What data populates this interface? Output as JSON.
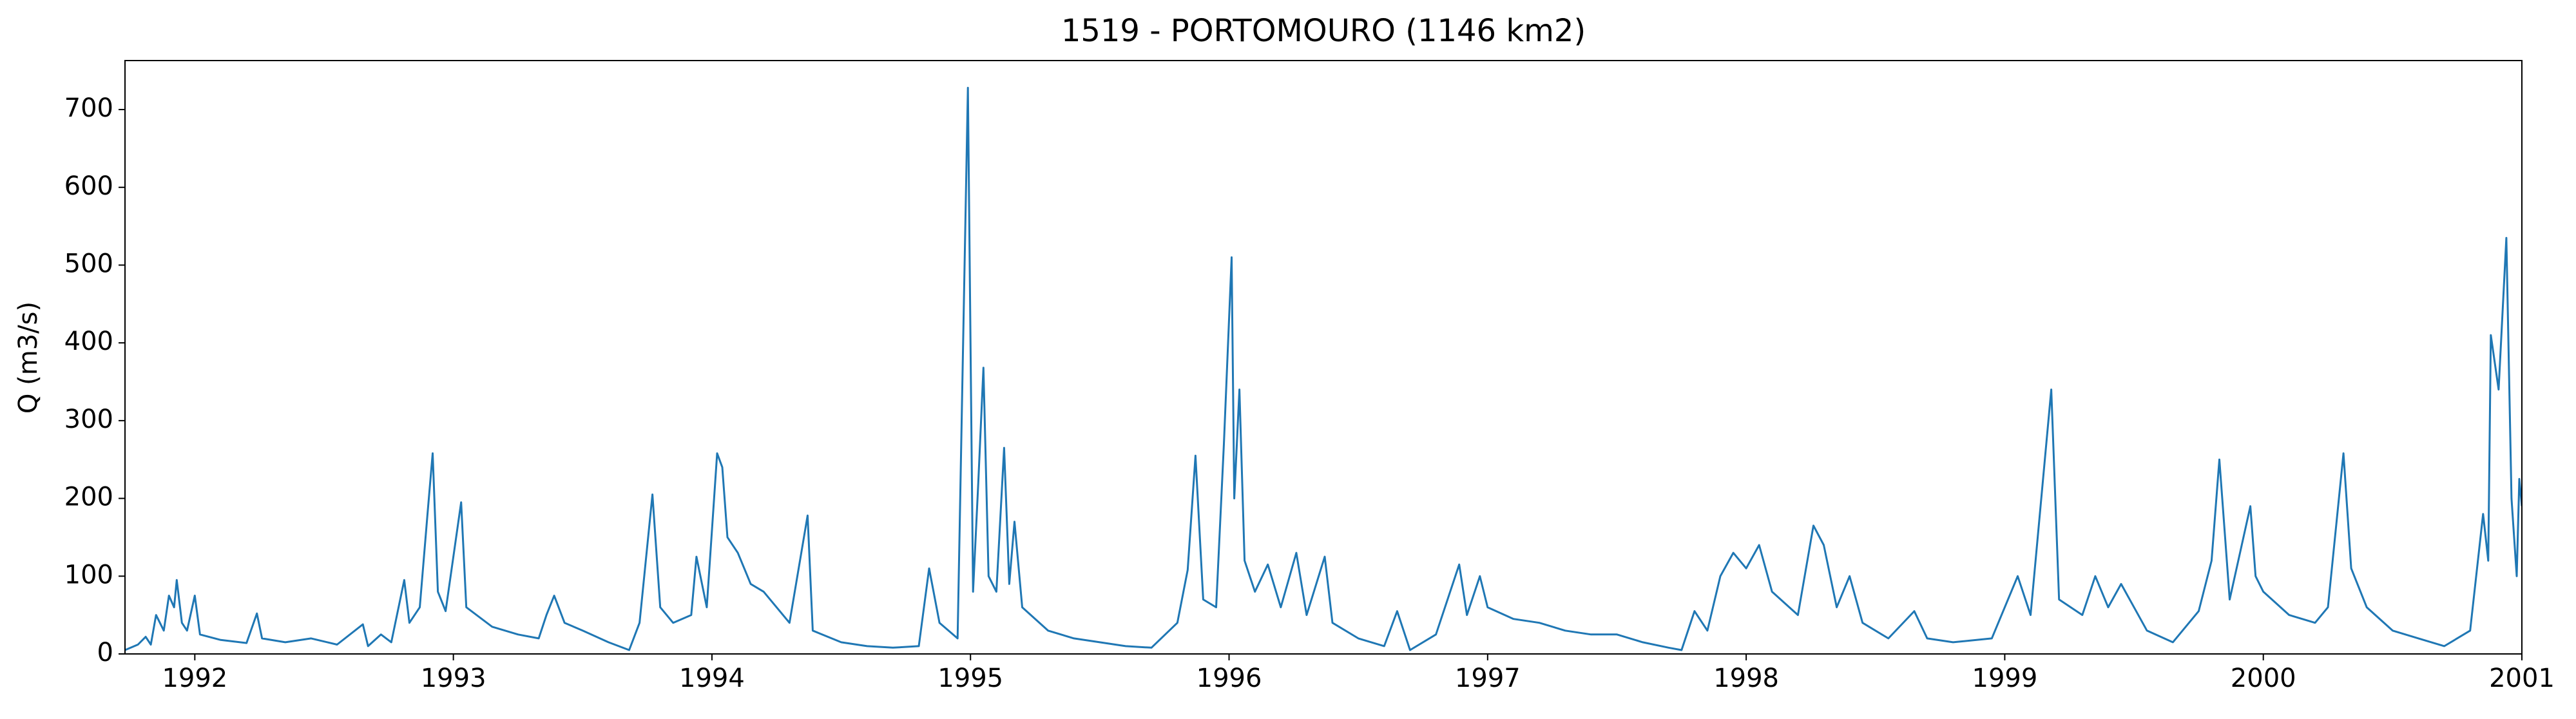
{
  "chart_data": {
    "type": "line",
    "title": "1519 - PORTOMOURO (1146 km2)",
    "ylabel": "Q (m3/s)",
    "color": "#1f77b4",
    "xlim": [
      1991.73,
      2001.0
    ],
    "xticks": [
      1992,
      1993,
      1994,
      1995,
      1996,
      1997,
      1998,
      1999,
      2000,
      2001
    ],
    "ylim": [
      0,
      763
    ],
    "yticks": [
      0,
      100,
      200,
      300,
      400,
      500,
      600,
      700
    ],
    "x": [
      1991.73,
      1991.78,
      1991.81,
      1991.83,
      1991.85,
      1991.88,
      1991.9,
      1991.92,
      1991.93,
      1991.95,
      1991.97,
      1992.0,
      1992.02,
      1992.1,
      1992.2,
      1992.24,
      1992.26,
      1992.35,
      1992.45,
      1992.55,
      1992.65,
      1992.67,
      1992.72,
      1992.76,
      1992.81,
      1992.83,
      1992.87,
      1992.9,
      1992.92,
      1992.94,
      1992.97,
      1993.03,
      1993.05,
      1993.15,
      1993.25,
      1993.33,
      1993.36,
      1993.39,
      1993.43,
      1993.5,
      1993.6,
      1993.68,
      1993.72,
      1993.77,
      1993.8,
      1993.85,
      1993.92,
      1993.94,
      1993.98,
      1994.02,
      1994.04,
      1994.06,
      1994.1,
      1994.15,
      1994.2,
      1994.3,
      1994.37,
      1994.39,
      1994.5,
      1994.6,
      1994.7,
      1994.8,
      1994.82,
      1994.84,
      1994.88,
      1994.95,
      1994.99,
      1995.01,
      1995.03,
      1995.05,
      1995.07,
      1995.1,
      1995.13,
      1995.15,
      1995.17,
      1995.2,
      1995.3,
      1995.4,
      1995.5,
      1995.6,
      1995.7,
      1995.8,
      1995.84,
      1995.87,
      1995.9,
      1995.95,
      1995.98,
      1996.01,
      1996.02,
      1996.04,
      1996.06,
      1996.1,
      1996.15,
      1996.2,
      1996.26,
      1996.3,
      1996.37,
      1996.4,
      1996.5,
      1996.6,
      1996.65,
      1996.7,
      1996.8,
      1996.89,
      1996.92,
      1996.97,
      1997.0,
      1997.1,
      1997.2,
      1997.3,
      1997.4,
      1997.5,
      1997.6,
      1997.7,
      1997.75,
      1997.8,
      1997.85,
      1997.9,
      1997.95,
      1998.0,
      1998.05,
      1998.1,
      1998.2,
      1998.26,
      1998.3,
      1998.35,
      1998.4,
      1998.45,
      1998.55,
      1998.65,
      1998.7,
      1998.8,
      1998.95,
      1999.05,
      1999.1,
      1999.18,
      1999.21,
      1999.3,
      1999.35,
      1999.4,
      1999.45,
      1999.55,
      1999.65,
      1999.75,
      1999.8,
      1999.83,
      1999.87,
      1999.95,
      1999.97,
      2000.0,
      2000.1,
      2000.2,
      2000.25,
      2000.31,
      2000.34,
      2000.4,
      2000.5,
      2000.6,
      2000.7,
      2000.8,
      2000.85,
      2000.87,
      2000.88,
      2000.91,
      2000.94,
      2000.96,
      2000.98,
      2000.99,
      2001.0
    ],
    "values": [
      5,
      12,
      22,
      12,
      50,
      30,
      75,
      60,
      95,
      40,
      30,
      75,
      25,
      18,
      14,
      52,
      20,
      15,
      20,
      12,
      38,
      10,
      25,
      15,
      95,
      40,
      60,
      180,
      258,
      80,
      55,
      195,
      60,
      35,
      25,
      20,
      50,
      75,
      40,
      30,
      15,
      5,
      40,
      205,
      60,
      40,
      50,
      125,
      60,
      258,
      240,
      150,
      130,
      90,
      80,
      40,
      178,
      30,
      15,
      10,
      8,
      10,
      60,
      110,
      40,
      20,
      728,
      80,
      220,
      368,
      100,
      80,
      265,
      90,
      170,
      60,
      30,
      20,
      15,
      10,
      8,
      40,
      108,
      255,
      70,
      60,
      270,
      510,
      200,
      340,
      120,
      80,
      115,
      60,
      130,
      50,
      125,
      40,
      20,
      10,
      55,
      5,
      25,
      115,
      50,
      100,
      60,
      45,
      40,
      30,
      25,
      25,
      15,
      8,
      5,
      55,
      30,
      100,
      130,
      110,
      140,
      80,
      50,
      165,
      140,
      60,
      100,
      40,
      20,
      55,
      20,
      15,
      20,
      100,
      50,
      340,
      70,
      50,
      100,
      60,
      90,
      30,
      15,
      55,
      120,
      250,
      70,
      190,
      100,
      80,
      50,
      40,
      60,
      258,
      110,
      60,
      30,
      20,
      10,
      30,
      180,
      120,
      410,
      340,
      535,
      200,
      100,
      225,
      190
    ]
  }
}
